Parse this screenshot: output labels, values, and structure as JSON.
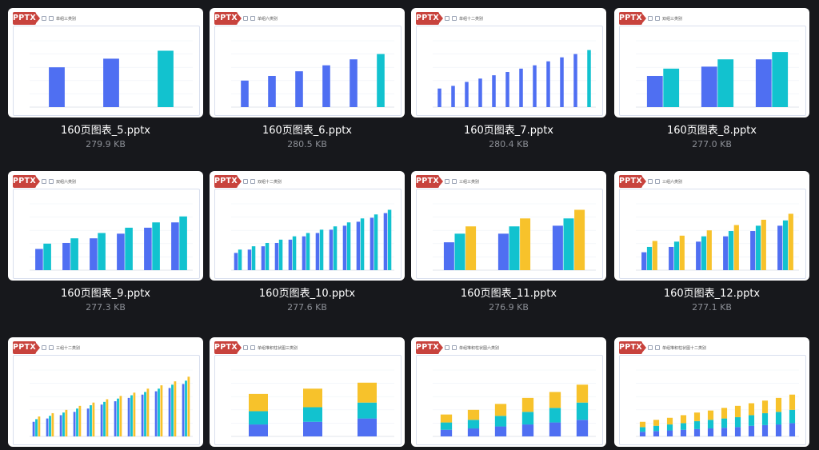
{
  "colors": {
    "blue": "#4f6ff2",
    "teal": "#12c2cf",
    "yellow": "#f7c22b",
    "badge": "#c8433d"
  },
  "cards": [
    {
      "badge": "PPTX",
      "category": "单组三类别",
      "filename": "160页图表_5.pptx",
      "size": "279.9 KB",
      "chart_data": {
        "type": "bar",
        "categories": [
          "",
          "",
          ""
        ],
        "stacked": false,
        "series": [
          {
            "color": "#4f6ff2",
            "values": [
              60,
              73,
              85
            ]
          }
        ],
        "highlight_last_color": "#12c2cf",
        "ylim": [
          0,
          100
        ]
      }
    },
    {
      "badge": "PPTX",
      "category": "单组六类别",
      "filename": "160页图表_6.pptx",
      "size": "280.5 KB",
      "chart_data": {
        "type": "bar",
        "categories": [
          "",
          "",
          "",
          "",
          "",
          ""
        ],
        "stacked": false,
        "series": [
          {
            "color": "#4f6ff2",
            "values": [
              40,
              47,
              54,
              63,
              72,
              80
            ]
          }
        ],
        "highlight_last_color": "#12c2cf",
        "ylim": [
          0,
          100
        ]
      }
    },
    {
      "badge": "PPTX",
      "category": "单组十二类别",
      "filename": "160页图表_7.pptx",
      "size": "280.4 KB",
      "chart_data": {
        "type": "bar",
        "categories": [
          "",
          "",
          "",
          "",
          "",
          "",
          "",
          "",
          "",
          "",
          "",
          ""
        ],
        "stacked": false,
        "series": [
          {
            "color": "#4f6ff2",
            "values": [
              28,
              32,
              38,
              43,
              48,
              53,
              58,
              63,
              69,
              75,
              80,
              86
            ]
          }
        ],
        "highlight_last_color": "#12c2cf",
        "ylim": [
          0,
          100
        ]
      }
    },
    {
      "badge": "PPTX",
      "category": "双组三类别",
      "filename": "160页图表_8.pptx",
      "size": "277.0 KB",
      "chart_data": {
        "type": "bar",
        "categories": [
          "",
          "",
          ""
        ],
        "stacked": false,
        "series": [
          {
            "color": "#4f6ff2",
            "values": [
              47,
              61,
              72
            ]
          },
          {
            "color": "#12c2cf",
            "values": [
              58,
              72,
              83
            ]
          }
        ],
        "ylim": [
          0,
          100
        ]
      }
    },
    {
      "badge": "PPTX",
      "category": "双组六类别",
      "filename": "160页图表_9.pptx",
      "size": "277.3 KB",
      "chart_data": {
        "type": "bar",
        "categories": [
          "",
          "",
          "",
          "",
          "",
          ""
        ],
        "stacked": false,
        "series": [
          {
            "color": "#4f6ff2",
            "values": [
              32,
              41,
              48,
              55,
              64,
              72
            ]
          },
          {
            "color": "#12c2cf",
            "values": [
              40,
              48,
              56,
              64,
              72,
              81
            ]
          }
        ],
        "ylim": [
          0,
          100
        ]
      }
    },
    {
      "badge": "PPTX",
      "category": "双组十二类别",
      "filename": "160页图表_10.pptx",
      "size": "277.6 KB",
      "chart_data": {
        "type": "bar",
        "categories": [
          "",
          "",
          "",
          "",
          "",
          "",
          "",
          "",
          "",
          "",
          "",
          ""
        ],
        "stacked": false,
        "series": [
          {
            "color": "#4f6ff2",
            "values": [
              26,
              31,
              36,
              41,
              46,
              51,
              56,
              61,
              67,
              73,
              79,
              86
            ]
          },
          {
            "color": "#12c2cf",
            "values": [
              31,
              36,
              41,
              46,
              51,
              56,
              61,
              66,
              72,
              78,
              84,
              91
            ]
          }
        ],
        "ylim": [
          0,
          100
        ]
      }
    },
    {
      "badge": "PPTX",
      "category": "三组三类别",
      "filename": "160页图表_11.pptx",
      "size": "276.9 KB",
      "chart_data": {
        "type": "bar",
        "categories": [
          "",
          "",
          ""
        ],
        "stacked": false,
        "series": [
          {
            "color": "#4f6ff2",
            "values": [
              42,
              55,
              67
            ]
          },
          {
            "color": "#12c2cf",
            "values": [
              55,
              66,
              78
            ]
          },
          {
            "color": "#f7c22b",
            "values": [
              66,
              78,
              91
            ]
          }
        ],
        "ylim": [
          0,
          100
        ]
      }
    },
    {
      "badge": "PPTX",
      "category": "三组六类别",
      "filename": "160页图表_12.pptx",
      "size": "277.1 KB",
      "chart_data": {
        "type": "bar",
        "categories": [
          "",
          "",
          "",
          "",
          "",
          ""
        ],
        "stacked": false,
        "series": [
          {
            "color": "#4f6ff2",
            "values": [
              27,
              35,
              43,
              51,
              59,
              67
            ]
          },
          {
            "color": "#12c2cf",
            "values": [
              35,
              43,
              51,
              59,
              67,
              75
            ]
          },
          {
            "color": "#f7c22b",
            "values": [
              44,
              52,
              60,
              68,
              76,
              85
            ]
          }
        ],
        "ylim": [
          0,
          100
        ]
      }
    },
    {
      "badge": "PPTX",
      "category": "三组十二类别",
      "filename": "",
      "size": "",
      "chart_data": {
        "type": "bar",
        "categories": [
          "",
          "",
          "",
          "",
          "",
          "",
          "",
          "",
          "",
          "",
          "",
          ""
        ],
        "stacked": false,
        "series": [
          {
            "color": "#4f6ff2",
            "values": [
              22,
              27,
              32,
              37,
              42,
              48,
              53,
              58,
              63,
              68,
              73,
              79
            ]
          },
          {
            "color": "#12c2cf",
            "values": [
              26,
              31,
              36,
              42,
              47,
              52,
              57,
              62,
              67,
              72,
              78,
              84
            ]
          },
          {
            "color": "#f7c22b",
            "values": [
              30,
              35,
              40,
              46,
              51,
              56,
              61,
              66,
              72,
              77,
              83,
              90
            ]
          }
        ],
        "ylim": [
          0,
          100
        ]
      }
    },
    {
      "badge": "PPTX",
      "category": "单组堆积柱状图三类别",
      "filename": "",
      "size": "",
      "chart_data": {
        "type": "bar",
        "categories": [
          "",
          "",
          ""
        ],
        "stacked": true,
        "series": [
          {
            "color": "#4f6ff2",
            "values": [
              18,
              22,
              27
            ]
          },
          {
            "color": "#12c2cf",
            "values": [
              20,
              22,
              24
            ]
          },
          {
            "color": "#f7c22b",
            "values": [
              26,
              28,
              30
            ]
          }
        ],
        "ylim": [
          0,
          100
        ]
      }
    },
    {
      "badge": "PPTX",
      "category": "单组堆积柱状图六类别",
      "filename": "",
      "size": "",
      "chart_data": {
        "type": "bar",
        "categories": [
          "",
          "",
          "",
          "",
          "",
          ""
        ],
        "stacked": true,
        "series": [
          {
            "color": "#4f6ff2",
            "values": [
              10,
              12,
              15,
              18,
              21,
              25
            ]
          },
          {
            "color": "#12c2cf",
            "values": [
              11,
              13,
              16,
              19,
              22,
              26
            ]
          },
          {
            "color": "#f7c22b",
            "values": [
              12,
              15,
              18,
              21,
              24,
              27
            ]
          }
        ],
        "ylim": [
          0,
          100
        ]
      }
    },
    {
      "badge": "PPTX",
      "category": "单组堆积柱状图十二类别",
      "filename": "",
      "size": "",
      "chart_data": {
        "type": "bar",
        "categories": [
          "",
          "",
          "",
          "",
          "",
          "",
          "",
          "",
          "",
          "",
          "",
          ""
        ],
        "stacked": true,
        "series": [
          {
            "color": "#4f6ff2",
            "values": [
              7,
              8,
              9,
              10,
              11,
              12,
              13,
              14,
              16,
              17,
              18,
              20
            ]
          },
          {
            "color": "#12c2cf",
            "values": [
              7,
              8,
              9,
              10,
              12,
              13,
              14,
              15,
              16,
              18,
              19,
              20
            ]
          },
          {
            "color": "#f7c22b",
            "values": [
              8,
              9,
              10,
              12,
              13,
              14,
              16,
              17,
              18,
              19,
              21,
              23
            ]
          }
        ],
        "ylim": [
          0,
          100
        ]
      }
    }
  ]
}
